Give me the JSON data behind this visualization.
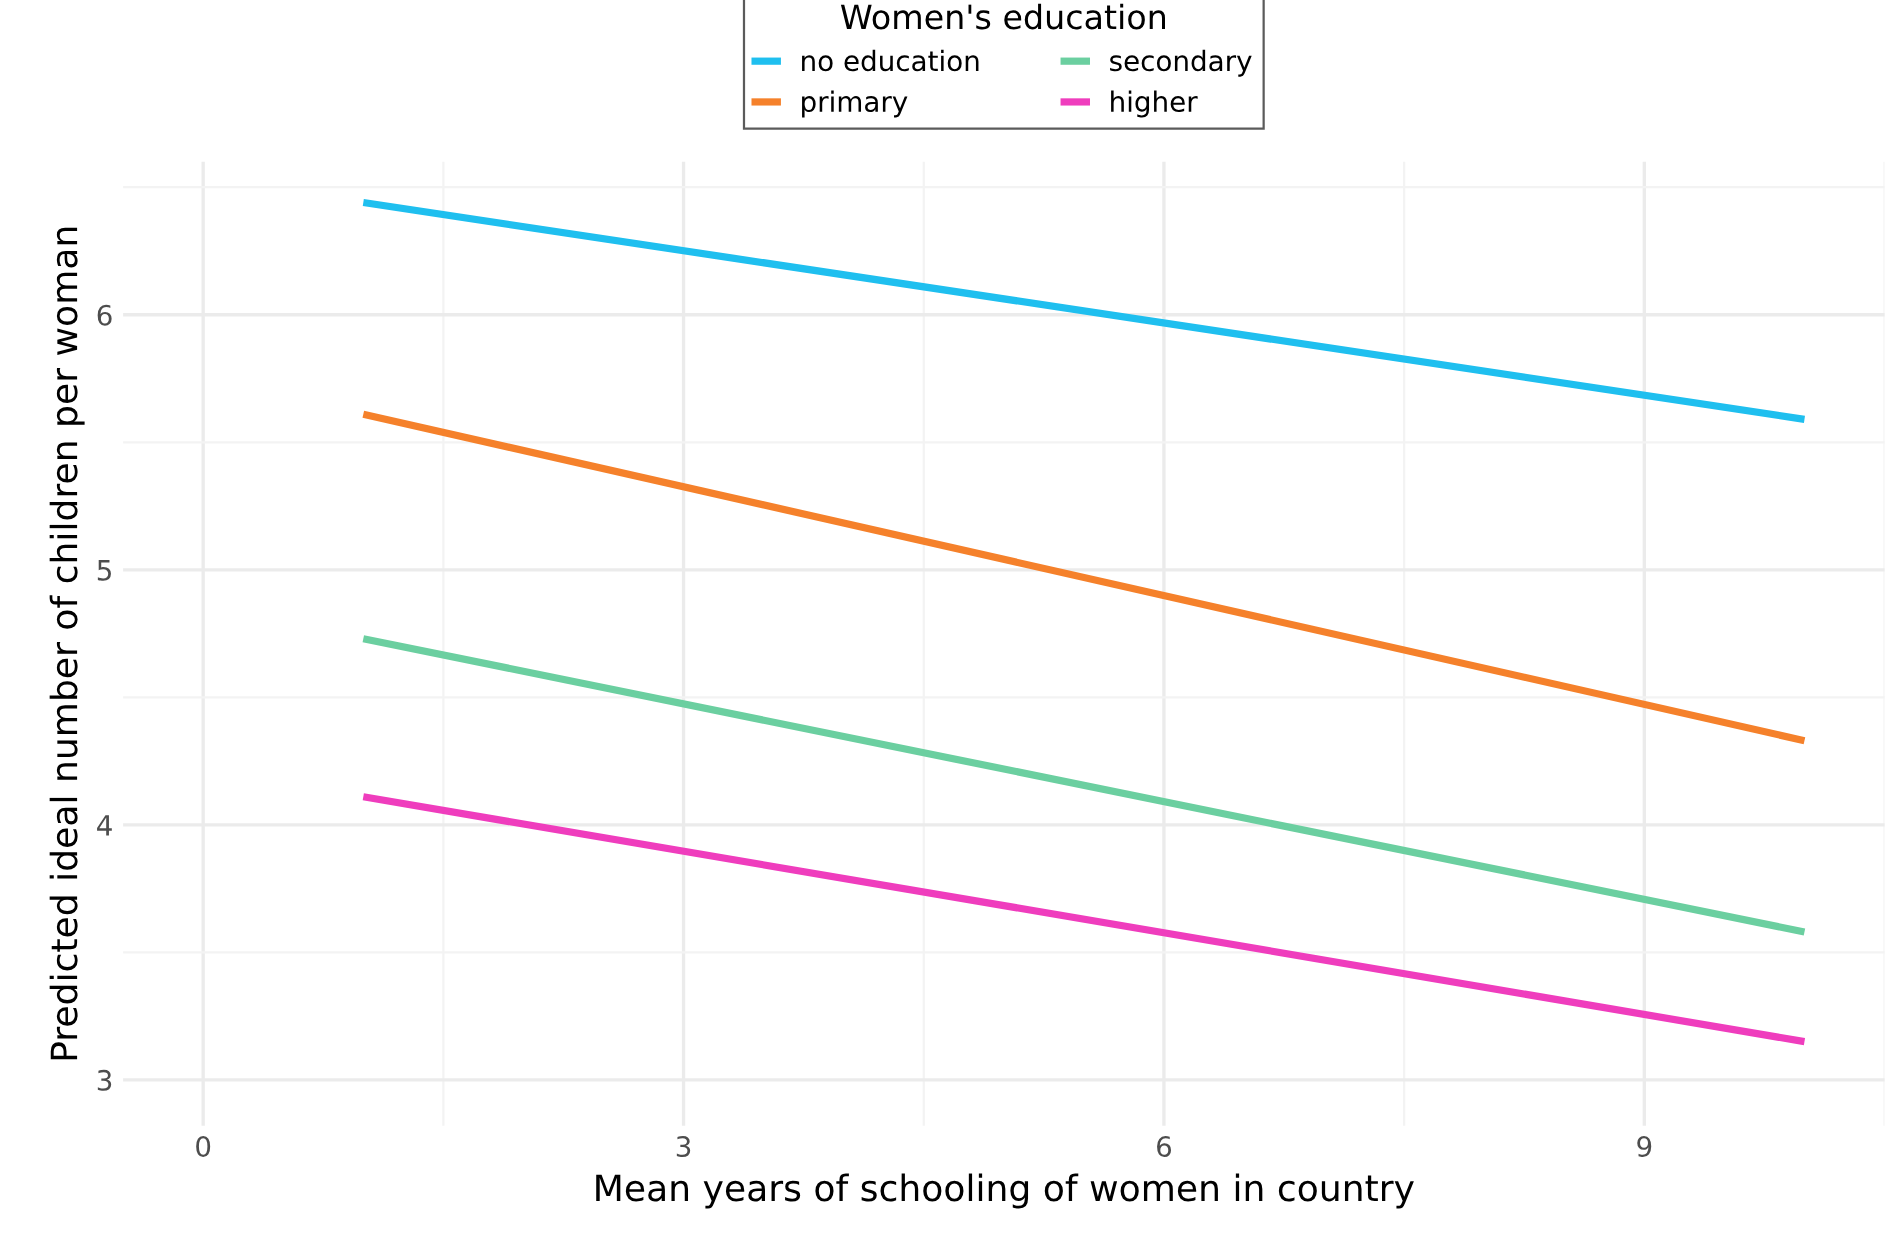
{
  "chart_data": {
    "type": "line",
    "xlabel": "Mean years of schooling of women in country",
    "ylabel": "Predicted ideal number of children per woman",
    "legend_title": "Women's education",
    "legend": "top",
    "grid": true,
    "marker": "none",
    "line_style": "solid",
    "x": [
      1,
      10
    ],
    "series": [
      {
        "name": "no education",
        "color": "#1fbfef",
        "values": [
          6.44,
          5.59
        ]
      },
      {
        "name": "primary",
        "color": "#f5812b",
        "values": [
          5.61,
          4.33
        ]
      },
      {
        "name": "secondary",
        "color": "#6bcfa0",
        "values": [
          4.73,
          3.58
        ]
      },
      {
        "name": "higher",
        "color": "#ef3dbd",
        "values": [
          4.11,
          3.15
        ]
      }
    ],
    "xlim": [
      -0.5,
      10.5
    ],
    "xticks": [
      0,
      3,
      6,
      9
    ],
    "ylim": [
      2.82,
      6.6
    ],
    "yticks": [
      3,
      4,
      5,
      6
    ]
  }
}
